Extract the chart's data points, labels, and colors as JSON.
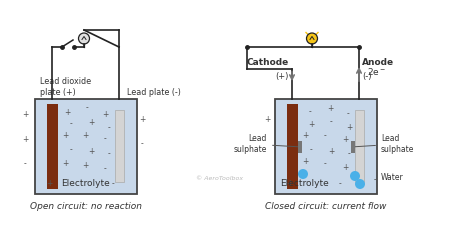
{
  "bg_color": "#ffffff",
  "electrolyte_color": "#c8d8ea",
  "tank_border_color": "#444444",
  "lead_dioxide_color": "#7B2D10",
  "lead_plate_color": "#d4d4d4",
  "wire_color": "#222222",
  "bulb_off_color": "#e0e0e0",
  "bulb_on_color": "#f5c518",
  "water_color": "#4ab0e8",
  "text_color": "#333333",
  "plus_minus_color": "#555555",
  "label_color": "#222222",
  "diagram1_caption": "Open circuit: no reaction",
  "diagram2_caption": "Closed circuit: current flow",
  "copyright": "© AeroToolbox"
}
